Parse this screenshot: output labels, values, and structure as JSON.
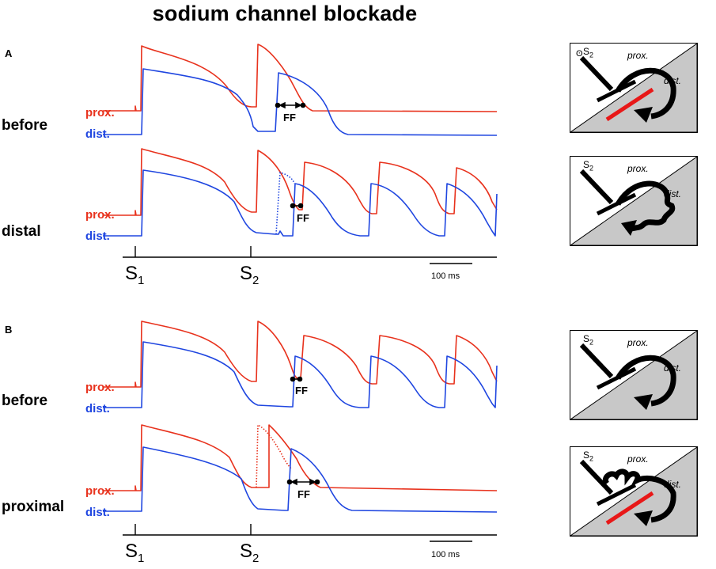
{
  "title": "sodium channel blockade",
  "panels": [
    {
      "letter": "A",
      "conditions": [
        {
          "label": "before",
          "prox": "prox.",
          "dist": "dist.",
          "ff": "FF"
        },
        {
          "label": "distal",
          "prox": "prox.",
          "dist": "dist.",
          "ff": "FF"
        }
      ],
      "s1": "S",
      "s1_sub": "1",
      "s2": "S",
      "s2_sub": "2",
      "scalebar": "100 ms"
    },
    {
      "letter": "B",
      "conditions": [
        {
          "label": "before",
          "prox": "prox.",
          "dist": "dist.",
          "ff": "FF"
        },
        {
          "label": "proximal",
          "prox": "prox.",
          "dist": "dist.",
          "ff": "FF"
        }
      ],
      "s1": "S",
      "s1_sub": "1",
      "s2": "S",
      "s2_sub": "2",
      "scalebar": "100 ms"
    }
  ],
  "insets": [
    {
      "s2": "S",
      "s2_sub": "2",
      "prox": "prox.",
      "dist": "dist."
    },
    {
      "s2": "S",
      "s2_sub": "2",
      "prox": "prox.",
      "dist": "dist."
    },
    {
      "s2": "S",
      "s2_sub": "2",
      "prox": "prox.",
      "dist": "dist."
    },
    {
      "s2": "S",
      "s2_sub": "2",
      "prox": "prox.",
      "dist": "dist."
    }
  ],
  "colors": {
    "prox": "#e8321d",
    "dist": "#1f46e0",
    "shade": "#c8c8c8"
  }
}
